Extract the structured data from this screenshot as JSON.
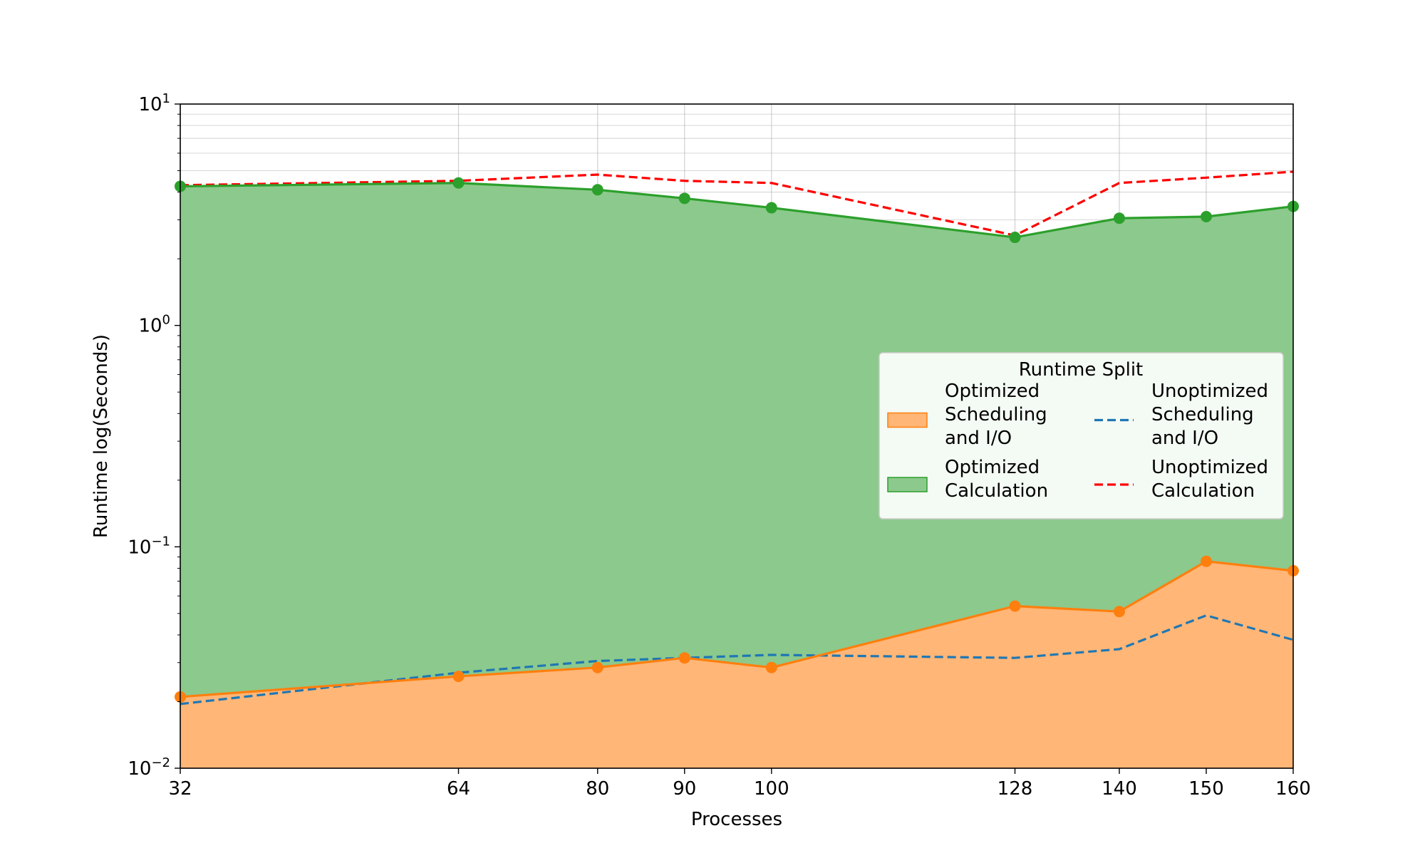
{
  "chart_data": {
    "type": "area",
    "title": "",
    "xlabel": "Processes",
    "ylabel": "Runtime log(Seconds)",
    "yscale": "log",
    "ylim": [
      0.01,
      10
    ],
    "x": [
      32,
      64,
      80,
      90,
      100,
      128,
      140,
      150,
      160
    ],
    "x_ticks": [
      "32",
      "64",
      "80",
      "90",
      "100",
      "128",
      "140",
      "150",
      "160"
    ],
    "y_ticks": [
      {
        "value": 0.01,
        "base": "10",
        "exp": "−2"
      },
      {
        "value": 0.1,
        "base": "10",
        "exp": "−1"
      },
      {
        "value": 1,
        "base": "10",
        "exp": "0"
      },
      {
        "value": 10,
        "base": "10",
        "exp": "1"
      }
    ],
    "grid": true,
    "legend": {
      "title": "Runtime Split",
      "position": "center-right",
      "columns": 2
    },
    "series": [
      {
        "name": "Optimized Scheduling and I/O",
        "kind": "filled-area-with-markers",
        "color": "#ff7f0e",
        "fill": "#ffb677",
        "values": [
          0.021,
          0.026,
          0.0285,
          0.0315,
          0.0285,
          0.054,
          0.051,
          0.086,
          0.078
        ]
      },
      {
        "name": "Optimized Calculation",
        "kind": "filled-area-with-markers",
        "color": "#2ca02c",
        "fill": "#8cc98c",
        "values": [
          4.25,
          4.4,
          4.1,
          3.75,
          3.4,
          2.5,
          3.05,
          3.1,
          3.45
        ]
      },
      {
        "name": "Unoptimized Scheduling and I/O",
        "kind": "dashed-line",
        "color": "#1f77b4",
        "values": [
          0.0195,
          0.027,
          0.0305,
          0.0315,
          0.0325,
          0.0315,
          0.0345,
          0.049,
          0.038
        ]
      },
      {
        "name": "Unoptimized Calculation",
        "kind": "dashed-line",
        "color": "#ff0000",
        "values": [
          4.3,
          4.5,
          4.8,
          4.5,
          4.4,
          2.55,
          4.4,
          4.65,
          4.95
        ]
      }
    ],
    "legend_labels": [
      {
        "lines": [
          "Optimized",
          "Scheduling",
          "and I/O"
        ]
      },
      {
        "lines": [
          "Optimized",
          "Calculation"
        ]
      },
      {
        "lines": [
          "Unoptimized",
          "Scheduling",
          "and I/O"
        ]
      },
      {
        "lines": [
          "Unoptimized",
          "Calculation"
        ]
      }
    ]
  }
}
